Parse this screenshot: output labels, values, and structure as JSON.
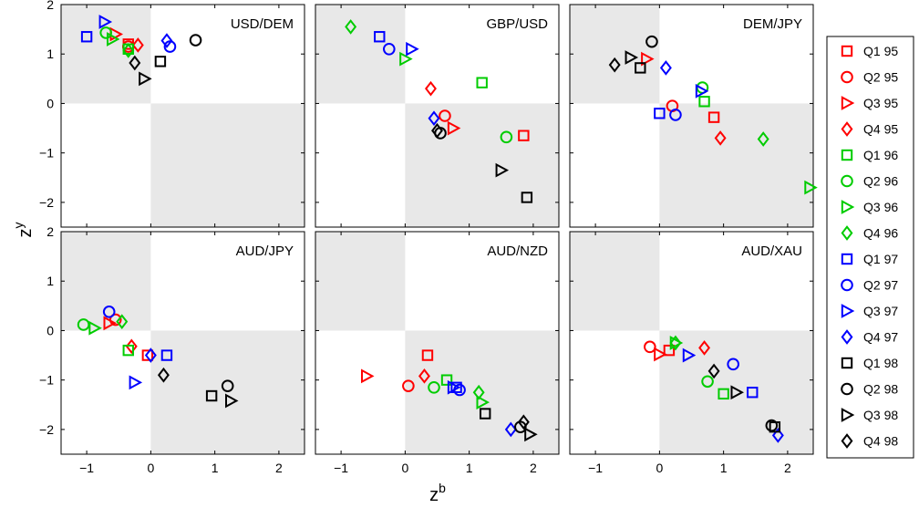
{
  "chart_data": {
    "type": "scatter",
    "xlabel": "z",
    "xlabel_sup": "b",
    "ylabel": "z",
    "ylabel_sup": "y",
    "xlim": [
      -1.4,
      2.4
    ],
    "ylim": [
      -2.5,
      2.0
    ],
    "xticks": [
      -1,
      0,
      1,
      2
    ],
    "yticks": [
      -2,
      -1,
      0,
      1,
      2
    ],
    "shading": "quadrants II and IV (x<0,y>0 and x>0,y<0) shaded light gray",
    "grid": false,
    "legend_position": "right",
    "series": [
      {
        "name": "Q1 95",
        "color": "#ff0000",
        "marker": "square"
      },
      {
        "name": "Q2 95",
        "color": "#ff0000",
        "marker": "circle"
      },
      {
        "name": "Q3 95",
        "color": "#ff0000",
        "marker": "triangle-right"
      },
      {
        "name": "Q4 95",
        "color": "#ff0000",
        "marker": "diamond"
      },
      {
        "name": "Q1 96",
        "color": "#00cc00",
        "marker": "square"
      },
      {
        "name": "Q2 96",
        "color": "#00cc00",
        "marker": "circle"
      },
      {
        "name": "Q3 96",
        "color": "#00cc00",
        "marker": "triangle-right"
      },
      {
        "name": "Q4 96",
        "color": "#00cc00",
        "marker": "diamond"
      },
      {
        "name": "Q1 97",
        "color": "#0000ff",
        "marker": "square"
      },
      {
        "name": "Q2 97",
        "color": "#0000ff",
        "marker": "circle"
      },
      {
        "name": "Q3 97",
        "color": "#0000ff",
        "marker": "triangle-right"
      },
      {
        "name": "Q4 97",
        "color": "#0000ff",
        "marker": "diamond"
      },
      {
        "name": "Q1 98",
        "color": "#000000",
        "marker": "square"
      },
      {
        "name": "Q2 98",
        "color": "#000000",
        "marker": "circle"
      },
      {
        "name": "Q3 98",
        "color": "#000000",
        "marker": "triangle-right"
      },
      {
        "name": "Q4 98",
        "color": "#000000",
        "marker": "diamond"
      }
    ],
    "panels": [
      {
        "title": "USD/DEM",
        "points": [
          [
            -0.35,
            1.2
          ],
          [
            -0.35,
            1.15
          ],
          [
            -0.55,
            1.4
          ],
          [
            -0.2,
            1.18
          ],
          [
            -0.35,
            1.1
          ],
          [
            -0.7,
            1.43
          ],
          [
            -0.6,
            1.3
          ],
          [
            -0.35,
            1.07
          ],
          [
            -1.0,
            1.35
          ],
          [
            0.3,
            1.15
          ],
          [
            -0.72,
            1.65
          ],
          [
            0.25,
            1.27
          ],
          [
            0.15,
            0.85
          ],
          [
            0.7,
            1.28
          ],
          [
            -0.1,
            0.5
          ],
          [
            -0.25,
            0.82
          ]
        ]
      },
      {
        "title": "GBP/USD",
        "points": [
          [
            1.85,
            -0.65
          ],
          [
            0.62,
            -0.25
          ],
          [
            0.75,
            -0.5
          ],
          [
            0.4,
            0.3
          ],
          [
            1.2,
            0.42
          ],
          [
            1.58,
            -0.68
          ],
          [
            0.0,
            0.9
          ],
          [
            -0.85,
            1.55
          ],
          [
            -0.4,
            1.35
          ],
          [
            -0.25,
            1.1
          ],
          [
            0.1,
            1.1
          ],
          [
            0.45,
            -0.3
          ],
          [
            1.9,
            -1.9
          ],
          [
            0.55,
            -0.6
          ],
          [
            1.5,
            -1.35
          ],
          [
            0.5,
            -0.55
          ]
        ]
      },
      {
        "title": "DEM/JPY",
        "points": [
          [
            0.85,
            -0.28
          ],
          [
            0.2,
            -0.05
          ],
          [
            -0.2,
            0.9
          ],
          [
            0.95,
            -0.7
          ],
          [
            0.7,
            0.04
          ],
          [
            0.67,
            0.32
          ],
          [
            2.35,
            -1.7
          ],
          [
            1.62,
            -0.72
          ],
          [
            0.0,
            -0.2
          ],
          [
            0.25,
            -0.23
          ],
          [
            0.65,
            0.25
          ],
          [
            0.1,
            0.72
          ],
          [
            -0.3,
            0.72
          ],
          [
            -0.12,
            1.25
          ],
          [
            -0.45,
            0.93
          ],
          [
            -0.7,
            0.78
          ]
        ]
      },
      {
        "title": "AUD/JPY",
        "points": [
          [
            -0.05,
            -0.5
          ],
          [
            -0.55,
            0.22
          ],
          [
            -0.65,
            0.15
          ],
          [
            -0.3,
            -0.32
          ],
          [
            -0.35,
            -0.4
          ],
          [
            -1.05,
            0.12
          ],
          [
            -0.88,
            0.05
          ],
          [
            -0.45,
            0.18
          ],
          [
            0.25,
            -0.5
          ],
          [
            -0.65,
            0.38
          ],
          [
            -0.25,
            -1.05
          ],
          [
            0.0,
            -0.5
          ],
          [
            0.95,
            -1.32
          ],
          [
            1.2,
            -1.12
          ],
          [
            1.25,
            -1.42
          ],
          [
            0.2,
            -0.9
          ]
        ]
      },
      {
        "title": "AUD/NZD",
        "points": [
          [
            0.35,
            -0.5
          ],
          [
            0.05,
            -1.12
          ],
          [
            -0.6,
            -0.92
          ],
          [
            0.3,
            -0.92
          ],
          [
            0.65,
            -1.0
          ],
          [
            0.45,
            -1.15
          ],
          [
            1.2,
            -1.45
          ],
          [
            1.15,
            -1.25
          ],
          [
            0.8,
            -1.15
          ],
          [
            0.85,
            -1.2
          ],
          [
            0.75,
            -1.15
          ],
          [
            1.65,
            -2.0
          ],
          [
            1.25,
            -1.68
          ],
          [
            1.8,
            -1.95
          ],
          [
            1.95,
            -2.1
          ],
          [
            1.85,
            -1.85
          ]
        ]
      },
      {
        "title": "AUD/XAU",
        "points": [
          [
            0.15,
            -0.4
          ],
          [
            -0.15,
            -0.33
          ],
          [
            0.0,
            -0.48
          ],
          [
            0.7,
            -0.35
          ],
          [
            1.0,
            -1.28
          ],
          [
            0.75,
            -1.03
          ],
          [
            0.25,
            -0.25
          ],
          [
            0.25,
            -0.25
          ],
          [
            1.45,
            -1.25
          ],
          [
            1.15,
            -0.68
          ],
          [
            0.45,
            -0.5
          ],
          [
            1.85,
            -2.12
          ],
          [
            1.8,
            -1.95
          ],
          [
            1.75,
            -1.92
          ],
          [
            1.2,
            -1.25
          ],
          [
            0.85,
            -0.82
          ]
        ]
      }
    ]
  }
}
